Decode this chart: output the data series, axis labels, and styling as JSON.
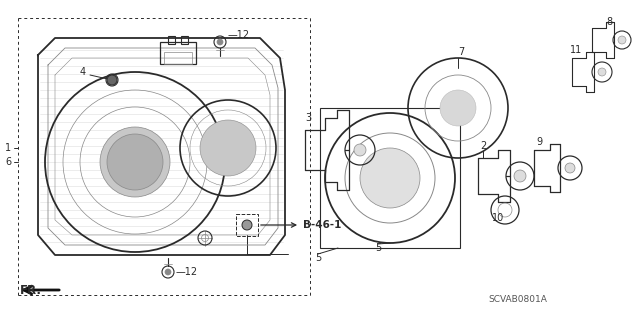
{
  "bg_color": "#ffffff",
  "line_color": "#2a2a2a",
  "gray_color": "#888888",
  "light_gray": "#bbbbbb",
  "diagram_code": "SCVAB0801A",
  "fig_width": 6.4,
  "fig_height": 3.19,
  "dpi": 100
}
